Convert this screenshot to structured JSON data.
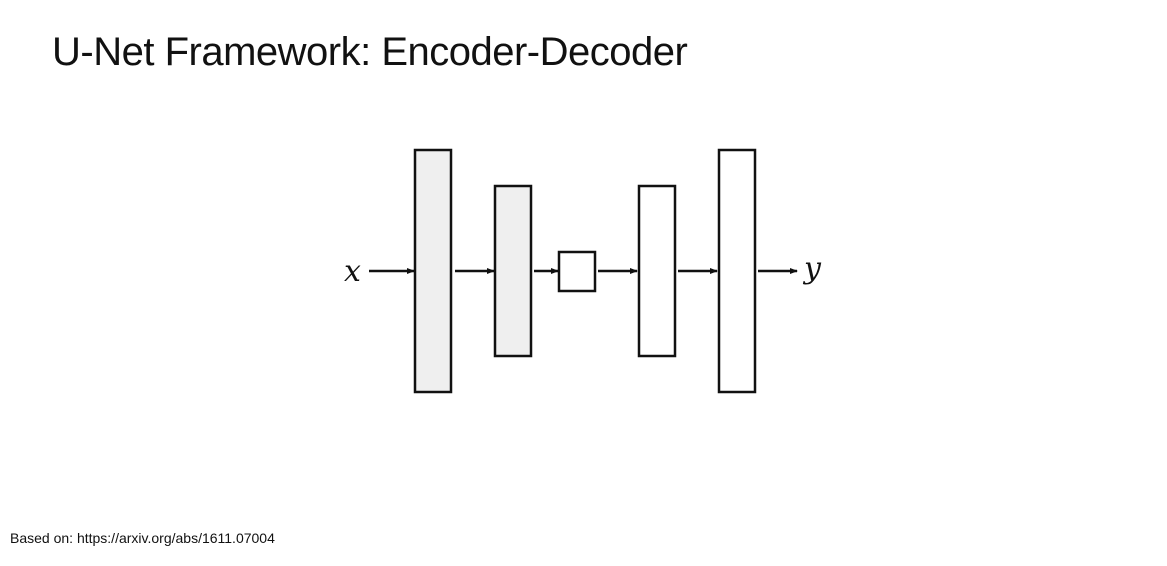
{
  "slide": {
    "title": "U-Net Framework: Encoder-Decoder",
    "source_note": "Based on: https://arxiv.org/abs/1611.07004"
  },
  "diagram": {
    "input_label": "x",
    "output_label": "y",
    "colors": {
      "encoder_fill": "#efefef",
      "decoder_fill": "#ffffff",
      "bottleneck_fill": "#ffffff",
      "stroke": "#111111"
    }
  }
}
